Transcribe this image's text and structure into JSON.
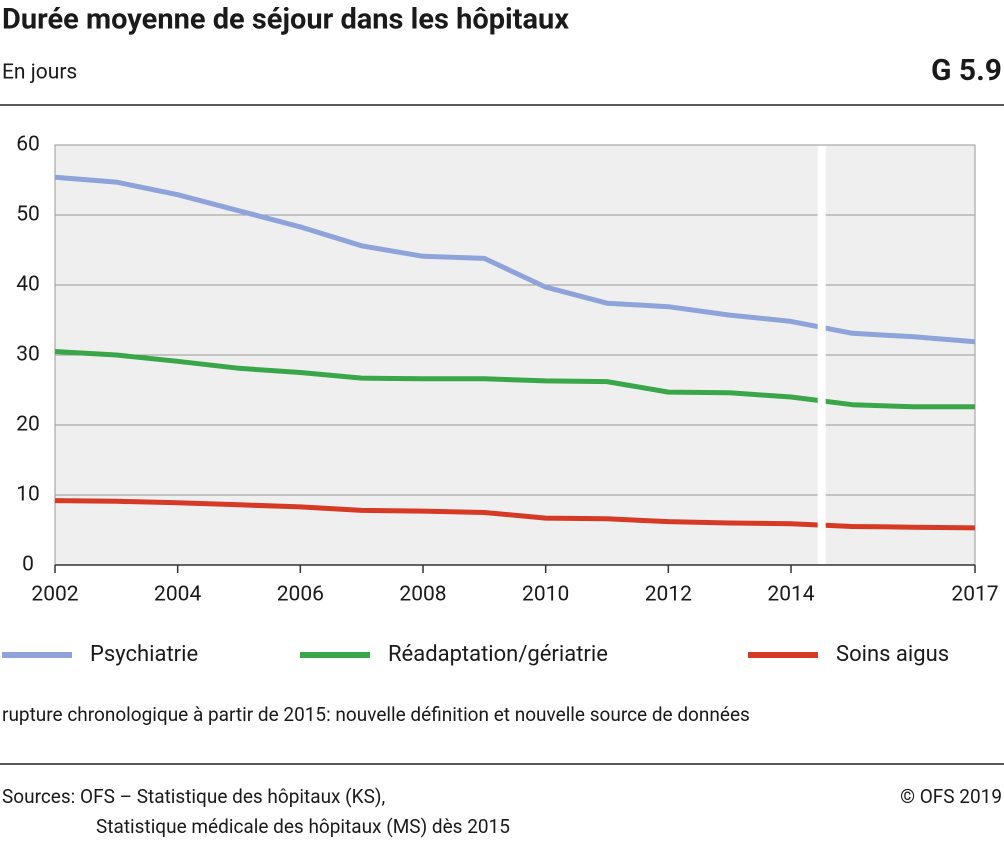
{
  "chart_data": {
    "type": "line",
    "title": "Durée moyenne de séjour dans les hôpitaux",
    "subtitle": "En jours",
    "chart_id": "G 5.9",
    "x": [
      2002,
      2003,
      2004,
      2005,
      2006,
      2007,
      2008,
      2009,
      2010,
      2011,
      2012,
      2013,
      2014,
      2015,
      2016,
      2017
    ],
    "series": [
      {
        "name": "Psychiatrie",
        "color": "#8fa3db",
        "values": [
          55.4,
          54.7,
          52.9,
          50.6,
          48.3,
          45.6,
          44.1,
          43.8,
          39.7,
          37.4,
          36.9,
          35.7,
          34.8,
          33.1,
          32.6,
          31.9
        ]
      },
      {
        "name": "Réadaptation/gériatrie",
        "color": "#3aa64a",
        "values": [
          30.5,
          30.0,
          29.1,
          28.1,
          27.5,
          26.7,
          26.6,
          26.6,
          26.3,
          26.2,
          24.7,
          24.6,
          24.0,
          22.9,
          22.6,
          22.6
        ]
      },
      {
        "name": "Soins aigus",
        "color": "#d63a25",
        "values": [
          9.2,
          9.1,
          8.9,
          8.6,
          8.3,
          7.8,
          7.7,
          7.5,
          6.7,
          6.6,
          6.2,
          6.0,
          5.9,
          5.5,
          5.4,
          5.3
        ]
      }
    ],
    "xlim": [
      2002,
      2017
    ],
    "xticks": [
      2002,
      2004,
      2006,
      2008,
      2010,
      2012,
      2014,
      2017
    ],
    "ylim": [
      0,
      60
    ],
    "yticks": [
      0,
      10,
      20,
      30,
      40,
      50,
      60
    ],
    "grid": true,
    "legend": "bottom",
    "note": "rupture chronologique à partir de 2015: nouvelle définition et nouvelle source de données",
    "sources": [
      "Sources: OFS – Statistique des hôpitaux (KS),",
      "Statistique médicale des hôpitaux (MS) dès 2015"
    ],
    "copyright": "© OFS 2019"
  }
}
